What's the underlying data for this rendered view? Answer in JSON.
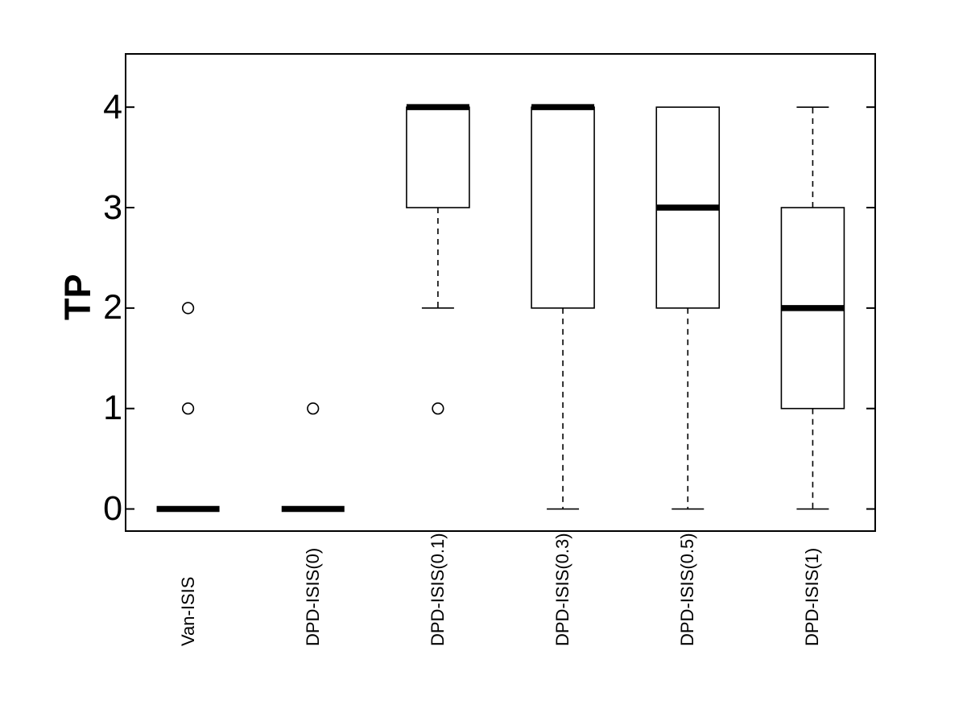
{
  "chart_data": {
    "type": "boxplot",
    "title": "",
    "xlabel": "",
    "ylabel": "TP",
    "categories": [
      "Van-ISIS",
      "DPD-ISIS(0)",
      "DPD-ISIS(0.1)",
      "DPD-ISIS(0.3)",
      "DPD-ISIS(0.5)",
      "DPD-ISIS(1)"
    ],
    "ytick_labels": [
      "0",
      "1",
      "2",
      "3",
      "4"
    ],
    "yticks": [
      0,
      1,
      2,
      3,
      4
    ],
    "ylim": [
      -0.22,
      4.53
    ],
    "grid": false,
    "legend": "none",
    "style": {
      "stroke_color": "#000000",
      "background_color": "#ffffff",
      "whisker_style": "dashed",
      "box_fill": "none",
      "outlier_marker": "circle"
    },
    "boxes": [
      {
        "category": "Van-ISIS",
        "whisker_low": 0,
        "q1": 0,
        "median": 0,
        "q3": 0,
        "whisker_high": 0,
        "outliers": [
          1,
          2
        ]
      },
      {
        "category": "DPD-ISIS(0)",
        "whisker_low": 0,
        "q1": 0,
        "median": 0,
        "q3": 0,
        "whisker_high": 0,
        "outliers": [
          1
        ]
      },
      {
        "category": "DPD-ISIS(0.1)",
        "whisker_low": 2,
        "q1": 3,
        "median": 4,
        "q3": 4,
        "whisker_high": 4,
        "outliers": [
          1
        ]
      },
      {
        "category": "DPD-ISIS(0.3)",
        "whisker_low": 0,
        "q1": 2,
        "median": 4,
        "q3": 4,
        "whisker_high": 4,
        "outliers": []
      },
      {
        "category": "DPD-ISIS(0.5)",
        "whisker_low": 0,
        "q1": 2,
        "median": 3,
        "q3": 4,
        "whisker_high": 4,
        "outliers": []
      },
      {
        "category": "DPD-ISIS(1)",
        "whisker_low": 0,
        "q1": 1,
        "median": 2,
        "q3": 3,
        "whisker_high": 4,
        "outliers": []
      }
    ]
  }
}
